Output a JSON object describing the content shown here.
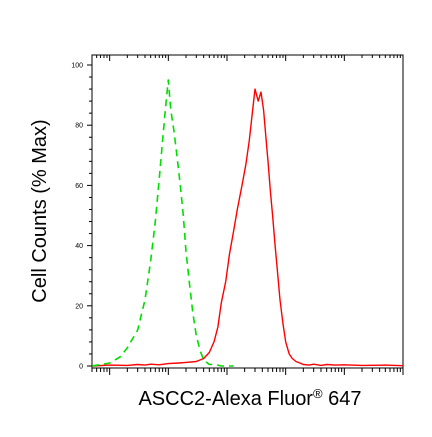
{
  "chart_data": {
    "type": "line",
    "xlabel_main": "ASCC2-Alexa Fluor",
    "xlabel_sup": "®",
    "xlabel_tail": " 647",
    "ylabel": "Cell Counts (% Max)",
    "ylim": [
      0,
      100
    ],
    "yticks": [
      "0",
      "20",
      "40",
      "60",
      "80",
      "100"
    ],
    "x_scale": "log",
    "xlim": [
      0.05,
      10000
    ],
    "grid": false,
    "legend": "none",
    "series": [
      {
        "color": "#ff0000",
        "style": "solid",
        "x": [
          0.05,
          0.1,
          0.2,
          0.3,
          0.4,
          0.5,
          0.7,
          1.0,
          1.5,
          2.0,
          3.0,
          4.0,
          5.0,
          6.0,
          7.0,
          8.0,
          9.5,
          11.0,
          13.0,
          15.0,
          18.0,
          21.0,
          24.0,
          27.0,
          30.0,
          34.0,
          38.0,
          42.0,
          46.0,
          50.0,
          55.0,
          60.0,
          66.0,
          72.0,
          80.0,
          90.0,
          100.0,
          115.0,
          130.0,
          150.0,
          175.0,
          200.0,
          250.0,
          300.0,
          400.0,
          500.0,
          700.0,
          1000.0,
          2000.0,
          5000.0,
          10000.0
        ],
        "y": [
          0,
          0.3,
          0.2,
          0.5,
          0.3,
          0.6,
          0.4,
          0.8,
          1.0,
          1.2,
          1.5,
          2.5,
          4.5,
          8,
          13,
          21,
          28,
          37,
          45,
          52,
          60,
          67,
          75,
          84,
          92,
          88,
          91,
          85,
          76,
          68,
          58,
          50,
          40,
          32,
          22,
          14,
          8,
          4,
          2.5,
          1.5,
          1.0,
          0.5,
          0.3,
          0.6,
          0.2,
          0.5,
          0.3,
          0.4,
          0.2,
          0.3,
          0.1
        ]
      },
      {
        "color": "#00dd00",
        "style": "dashed",
        "x": [
          0.05,
          0.1,
          0.15,
          0.2,
          0.3,
          0.4,
          0.5,
          0.6,
          0.7,
          0.8,
          0.9,
          1.0,
          1.1,
          1.25,
          1.4,
          1.6,
          1.8,
          2.0,
          2.3,
          2.6,
          3.0,
          3.5,
          4.0,
          5.0,
          6.0,
          7.0,
          8.0,
          10.0,
          13.0
        ],
        "y": [
          0,
          1,
          3,
          6,
          12,
          22,
          35,
          48,
          62,
          75,
          86,
          95,
          85,
          78,
          70,
          60,
          50,
          38,
          27,
          18,
          10,
          5,
          2,
          0.5,
          0.5,
          0.3,
          0,
          0,
          0
        ]
      }
    ]
  }
}
